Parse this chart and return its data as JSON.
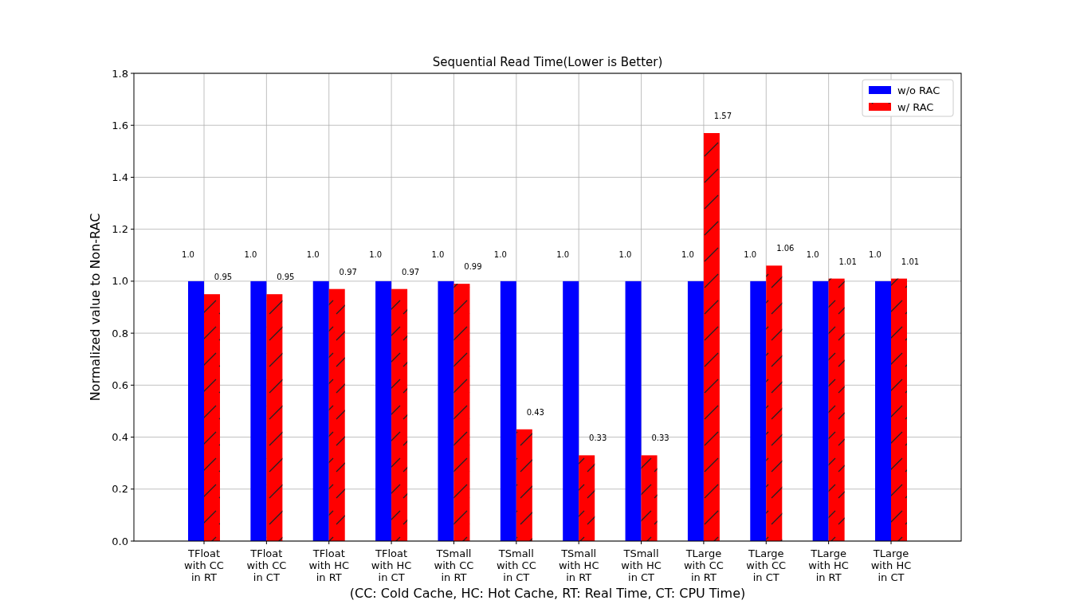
{
  "chart_data": {
    "type": "bar",
    "title": "Sequential Read Time(Lower is Better)",
    "xlabel": "(CC: Cold Cache, HC: Hot Cache, RT: Real Time, CT: CPU Time)",
    "ylabel": "Normalized value to Non-RAC",
    "categories": [
      "TFloat\nwith CC\nin RT",
      "TFloat\nwith CC\nin CT",
      "TFloat\nwith HC\nin RT",
      "TFloat\nwith HC\nin CT",
      "TSmall\nwith CC\nin RT",
      "TSmall\nwith CC\nin CT",
      "TSmall\nwith HC\nin RT",
      "TSmall\nwith HC\nin CT",
      "TLarge\nwith CC\nin RT",
      "TLarge\nwith CC\nin CT",
      "TLarge\nwith HC\nin RT",
      "TLarge\nwith HC\nin CT"
    ],
    "series": [
      {
        "name": "w/o RAC",
        "color": "#0000ff",
        "values": [
          1,
          1,
          1,
          1,
          1,
          1,
          1,
          1,
          1,
          1,
          1,
          1
        ],
        "value_labels": [
          "1.0",
          "1.0",
          "1.0",
          "1.0",
          "1.0",
          "1.0",
          "1.0",
          "1.0",
          "1.0",
          "1.0",
          "1.0",
          "1.0"
        ]
      },
      {
        "name": "w/ RAC",
        "color": "#ff0000",
        "values": [
          0.95,
          0.95,
          0.97,
          0.97,
          0.99,
          0.43,
          0.33,
          0.33,
          1.57,
          1.06,
          1.01,
          1.01
        ],
        "value_labels": [
          "0.95",
          "0.95",
          "0.97",
          "0.97",
          "0.99",
          "0.43",
          "0.33",
          "0.33",
          "1.57",
          "1.06",
          "1.01",
          "1.01"
        ]
      }
    ],
    "ylim": [
      0,
      1.8
    ],
    "yticks": [
      {
        "value": 0,
        "label": "0.0"
      },
      {
        "value": 0.2,
        "label": "0.2"
      },
      {
        "value": 0.4,
        "label": "0.4"
      },
      {
        "value": 0.6,
        "label": "0.6"
      },
      {
        "value": 0.8,
        "label": "0.8"
      },
      {
        "value": 1,
        "label": "1.0"
      },
      {
        "value": 1.2,
        "label": "1.2"
      },
      {
        "value": 1.4,
        "label": "1.4"
      },
      {
        "value": 1.6,
        "label": "1.6"
      },
      {
        "value": 1.8,
        "label": "1.8"
      }
    ],
    "grid": true,
    "legend": "top right"
  }
}
